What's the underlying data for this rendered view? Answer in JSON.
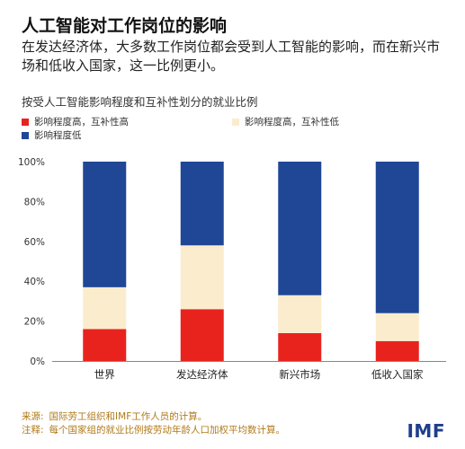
{
  "header": {
    "title": "人工智能对工作岗位的影响",
    "subtitle": "在发达经济体，大多数工作岗位都会受到人工智能的影响，而在新兴市场和低收入国家，这一比例更小。"
  },
  "chart_data": {
    "type": "bar",
    "stacked": true,
    "title": "按受人工智能影响程度和互补性划分的就业比例",
    "xlabel": "",
    "ylabel": "",
    "categories": [
      "世界",
      "发达经济体",
      "新兴市场",
      "低收入国家"
    ],
    "series": [
      {
        "name": "影响程度高，互补性高",
        "color": "#e8231e",
        "values": [
          16,
          26,
          14,
          10
        ]
      },
      {
        "name": "影响程度高，互补性低",
        "color": "#fbeccd",
        "values": [
          21,
          32,
          19,
          14
        ]
      },
      {
        "name": "影响程度低",
        "color": "#1f4796",
        "values": [
          63,
          42,
          67,
          76
        ]
      }
    ],
    "ylim": [
      0,
      100
    ],
    "yticks": [
      "0%",
      "20%",
      "40%",
      "60%",
      "80%",
      "100%"
    ],
    "grid": false,
    "legend_position": "top-left"
  },
  "footer": {
    "source_label": "来源:",
    "source_text": "国际劳工组织和IMF工作人员的计算。",
    "note_label": "注释:",
    "note_text": "每个国家组的就业比例按劳动年龄人口加权平均数计算。",
    "logo": "IMF"
  }
}
